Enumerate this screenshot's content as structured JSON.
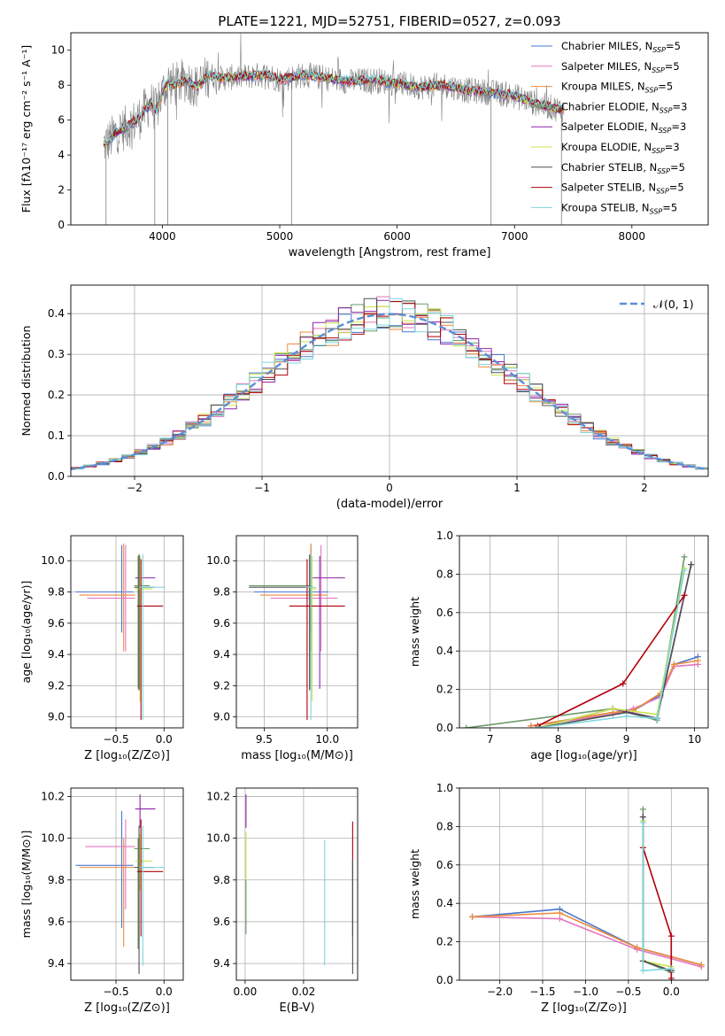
{
  "figure": {
    "title": "PLATE=1221, MJD=52751, FIBERID=0527, z=0.093"
  },
  "colors": {
    "Chabrier MILES": "#4878cf",
    "Salpeter MILES": "#e377c2",
    "Kroupa MILES": "#ee8b3a",
    "Chabrier ELODIE": "#6a9a6a",
    "Salpeter ELODIE": "#8e24aa",
    "Kroupa ELODIE": "#c8e64a",
    "Chabrier STELIB": "#505050",
    "Salpeter STELIB": "#b0000b",
    "Kroupa STELIB": "#7ed6dc",
    "normal": "#5a8fd8",
    "data": "#7f7f7f"
  },
  "chart_data": [
    {
      "id": "spectrum",
      "type": "line",
      "title": "PLATE=1221, MJD=52751, FIBERID=0527, z=0.093",
      "xlabel": "wavelength [Angstrom, rest frame]",
      "ylabel": "Flux [fλ10⁻¹⁷ erg cm⁻² s⁻¹ A⁻¹]",
      "xlim": [
        3220,
        8650
      ],
      "ylim": [
        0,
        11
      ],
      "xticks": [
        4000,
        5000,
        6000,
        7000,
        8000
      ],
      "yticks": [
        0,
        2,
        4,
        6,
        8,
        10
      ],
      "grid": false,
      "legend": "top-right",
      "legend_entries": [
        {
          "series": "Chabrier MILES",
          "text": "Chabrier MILES, N",
          "sub": "SSP",
          "tail": "=5"
        },
        {
          "series": "Salpeter MILES",
          "text": "Salpeter MILES, N",
          "sub": "SSP",
          "tail": "=5"
        },
        {
          "series": "Kroupa MILES",
          "text": "Kroupa MILES, N",
          "sub": "SSP",
          "tail": "=5"
        },
        {
          "series": "Chabrier ELODIE",
          "text": "Chabrier ELODIE, N",
          "sub": "SSP",
          "tail": "=3"
        },
        {
          "series": "Salpeter ELODIE",
          "text": "Salpeter ELODIE, N",
          "sub": "SSP",
          "tail": "=3"
        },
        {
          "series": "Kroupa ELODIE",
          "text": "Kroupa ELODIE, N",
          "sub": "SSP",
          "tail": "=3"
        },
        {
          "series": "Chabrier STELIB",
          "text": "Chabrier STELIB, N",
          "sub": "SSP",
          "tail": "=5"
        },
        {
          "series": "Salpeter STELIB",
          "text": "Salpeter STELIB, N",
          "sub": "SSP",
          "tail": "=5"
        },
        {
          "series": "Kroupa STELIB",
          "text": "Kroupa STELIB, N",
          "sub": "SSP",
          "tail": "=5"
        }
      ],
      "data_x": [
        3500,
        3560,
        3600,
        3700,
        3800,
        3900,
        3950,
        4000,
        4050,
        4100,
        4200,
        4300,
        4400,
        4500,
        4700,
        4900,
        5000,
        5200,
        5400,
        5600,
        5800,
        6000,
        6200,
        6400,
        6600,
        6800,
        7000,
        7200,
        7400
      ],
      "data_y": [
        4.6,
        4.9,
        5.3,
        5.6,
        6.1,
        7.0,
        6.5,
        7.6,
        8.2,
        8.0,
        8.3,
        7.9,
        8.6,
        8.4,
        8.5,
        8.6,
        8.3,
        8.6,
        8.4,
        8.2,
        8.3,
        8.1,
        7.9,
        8.0,
        7.7,
        7.6,
        7.4,
        6.9,
        6.6
      ],
      "deep_lines": [
        {
          "x": 3935,
          "to": 0
        },
        {
          "x": 4045,
          "to": 0
        },
        {
          "x": 5100,
          "to": 0
        },
        {
          "x": 6800,
          "to": 0
        },
        {
          "x": 7400,
          "to": 0
        },
        {
          "x": 3520,
          "to": 0
        }
      ]
    },
    {
      "id": "residuals",
      "type": "step",
      "xlabel": "(data-model)/error",
      "ylabel": "Normed distribution",
      "xlim": [
        -2.5,
        2.5
      ],
      "ylim": [
        0,
        0.47
      ],
      "xticks": [
        -2,
        -1,
        0,
        1,
        2
      ],
      "yticks": [
        0.0,
        0.1,
        0.2,
        0.3,
        0.4
      ],
      "grid": true,
      "legend": "top-right",
      "normal_label": "𝒩(0, 1)"
    },
    {
      "id": "age-vs-Z",
      "type": "errorbar",
      "xlabel": "Z [log₁₀(Z/Z⊙)]",
      "ylabel": "age  [log₁₀(age/yr)]",
      "xlim": [
        -0.97,
        0.2
      ],
      "ylim": [
        8.93,
        10.16
      ],
      "xticks": [
        -0.5,
        0.0
      ],
      "yticks": [
        9.0,
        9.2,
        9.4,
        9.6,
        9.8,
        10.0
      ],
      "grid": true,
      "points": [
        {
          "series": "Chabrier MILES",
          "x": -0.44,
          "y": 9.8,
          "xerr": [
            0.48,
            0.12
          ],
          "yerr": [
            0.26,
            0.3
          ]
        },
        {
          "series": "Salpeter MILES",
          "x": -0.4,
          "y": 9.76,
          "xerr": [
            0.4,
            0.1
          ],
          "yerr": [
            0.34,
            0.34
          ]
        },
        {
          "series": "Kroupa MILES",
          "x": -0.42,
          "y": 9.78,
          "xerr": [
            0.46,
            0.12
          ],
          "yerr": [
            0.36,
            0.33
          ]
        },
        {
          "series": "Chabrier ELODIE",
          "x": -0.27,
          "y": 9.84,
          "xerr": [
            0.04,
            0.12
          ],
          "yerr": [
            0.66,
            0.19
          ]
        },
        {
          "series": "Salpeter ELODIE",
          "x": -0.25,
          "y": 9.89,
          "xerr": [
            0.05,
            0.16
          ],
          "yerr": [
            0.71,
            0.14
          ]
        },
        {
          "series": "Kroupa ELODIE",
          "x": -0.25,
          "y": 9.82,
          "xerr": [
            0.05,
            0.13
          ],
          "yerr": [
            0.72,
            0.21
          ]
        },
        {
          "series": "Chabrier STELIB",
          "x": -0.26,
          "y": 9.83,
          "xerr": [
            0.05,
            0.16
          ],
          "yerr": [
            0.66,
            0.21
          ]
        },
        {
          "series": "Salpeter STELIB",
          "x": -0.24,
          "y": 9.71,
          "xerr": [
            0.04,
            0.23
          ],
          "yerr": [
            0.73,
            0.3
          ]
        },
        {
          "series": "Kroupa STELIB",
          "x": -0.22,
          "y": 9.83,
          "xerr": [
            0.04,
            0.23
          ],
          "yerr": [
            0.85,
            0.21
          ]
        }
      ]
    },
    {
      "id": "age-vs-mass",
      "type": "errorbar",
      "xlabel": "mass [log₁₀(M/M⊙)]",
      "ylabel": "",
      "xlim": [
        9.28,
        10.24
      ],
      "ylim": [
        8.93,
        10.16
      ],
      "xticks": [
        9.5,
        10.0
      ],
      "yticks": [
        9.0,
        9.2,
        9.4,
        9.6,
        9.8,
        10.0
      ],
      "grid": true,
      "points": [
        {
          "series": "Chabrier MILES",
          "x": 9.87,
          "y": 9.8,
          "xerr": [
            0.45,
            0.14
          ],
          "yerr": [
            0.26,
            0.3
          ]
        },
        {
          "series": "Salpeter MILES",
          "x": 9.95,
          "y": 9.76,
          "xerr": [
            0.4,
            0.13
          ],
          "yerr": [
            0.34,
            0.34
          ]
        },
        {
          "series": "Kroupa MILES",
          "x": 9.87,
          "y": 9.78,
          "xerr": [
            0.4,
            0.13
          ],
          "yerr": [
            0.36,
            0.33
          ]
        },
        {
          "series": "Chabrier ELODIE",
          "x": 9.86,
          "y": 9.84,
          "xerr": [
            0.48,
            0.02
          ],
          "yerr": [
            0.66,
            0.19
          ]
        },
        {
          "series": "Salpeter ELODIE",
          "x": 9.94,
          "y": 9.89,
          "xerr": [
            0.07,
            0.2
          ],
          "yerr": [
            0.71,
            0.14
          ]
        },
        {
          "series": "Kroupa ELODIE",
          "x": 9.88,
          "y": 9.82,
          "xerr": [
            0.04,
            0.04
          ],
          "yerr": [
            0.72,
            0.21
          ]
        },
        {
          "series": "Chabrier STELIB",
          "x": 9.86,
          "y": 9.83,
          "xerr": [
            0.48,
            0.02
          ],
          "yerr": [
            0.66,
            0.21
          ]
        },
        {
          "series": "Salpeter STELIB",
          "x": 9.84,
          "y": 9.71,
          "xerr": [
            0.14,
            0.3
          ],
          "yerr": [
            0.73,
            0.3
          ]
        },
        {
          "series": "Kroupa STELIB",
          "x": 9.87,
          "y": 9.83,
          "xerr": [
            0.04,
            0.04
          ],
          "yerr": [
            0.85,
            0.21
          ]
        }
      ]
    },
    {
      "id": "massweight-vs-age",
      "type": "line",
      "xlabel": "age  [log₁₀(age/yr)]",
      "ylabel": "mass weight",
      "xlim": [
        6.55,
        10.2
      ],
      "ylim": [
        0,
        1.0
      ],
      "xticks": [
        7,
        8,
        9,
        10
      ],
      "yticks": [
        0.0,
        0.2,
        0.4,
        0.6,
        0.8,
        1.0
      ],
      "grid": true,
      "series": [
        {
          "name": "Chabrier MILES",
          "x": [
            7.6,
            8.8,
            9.1,
            9.5,
            9.7,
            10.05
          ],
          "y": [
            0.01,
            0.08,
            0.09,
            0.17,
            0.33,
            0.37
          ]
        },
        {
          "name": "Salpeter MILES",
          "x": [
            7.6,
            8.8,
            9.1,
            9.5,
            9.7,
            10.05
          ],
          "y": [
            0.01,
            0.07,
            0.1,
            0.16,
            0.32,
            0.33
          ]
        },
        {
          "name": "Kroupa MILES",
          "x": [
            7.6,
            8.8,
            9.1,
            9.5,
            9.7,
            10.05
          ],
          "y": [
            0.01,
            0.08,
            0.09,
            0.18,
            0.33,
            0.35
          ]
        },
        {
          "name": "Chabrier ELODIE",
          "x": [
            6.65,
            8.8,
            9.45,
            9.85
          ],
          "y": [
            0.0,
            0.1,
            0.04,
            0.89
          ]
        },
        {
          "name": "Salpeter ELODIE",
          "x": [
            7.7,
            8.8,
            9.45,
            9.95
          ],
          "y": [
            0.0,
            0.1,
            0.05,
            0.85
          ]
        },
        {
          "name": "Kroupa ELODIE",
          "x": [
            7.7,
            8.8,
            9.45,
            9.85
          ],
          "y": [
            0.0,
            0.1,
            0.07,
            0.83
          ]
        },
        {
          "name": "Chabrier STELIB",
          "x": [
            7.7,
            9.0,
            9.45,
            9.95
          ],
          "y": [
            0.0,
            0.08,
            0.05,
            0.85
          ]
        },
        {
          "name": "Salpeter STELIB",
          "x": [
            7.7,
            8.95,
            9.85
          ],
          "y": [
            0.01,
            0.23,
            0.69
          ]
        },
        {
          "name": "Kroupa STELIB",
          "x": [
            7.7,
            9.0,
            9.45,
            9.85
          ],
          "y": [
            0.0,
            0.06,
            0.05,
            0.82
          ]
        }
      ]
    },
    {
      "id": "mass-vs-Z",
      "type": "errorbar",
      "xlabel": "Z [log₁₀(Z/Z⊙)]",
      "ylabel": "mass [log₁₀(M/M⊙)]",
      "xlim": [
        -0.97,
        0.2
      ],
      "ylim": [
        9.32,
        10.24
      ],
      "xticks": [
        -0.5,
        0.0
      ],
      "yticks": [
        9.4,
        9.6,
        9.8,
        10.0,
        10.2
      ],
      "grid": true,
      "points": [
        {
          "series": "Chabrier MILES",
          "x": -0.44,
          "y": 9.87,
          "xerr": [
            0.48,
            0.12
          ],
          "yerr": [
            0.3,
            0.26
          ]
        },
        {
          "series": "Salpeter MILES",
          "x": -0.4,
          "y": 9.96,
          "xerr": [
            0.42,
            0.1
          ],
          "yerr": [
            0.3,
            0.13
          ]
        },
        {
          "series": "Kroupa MILES",
          "x": -0.42,
          "y": 9.86,
          "xerr": [
            0.46,
            0.12
          ],
          "yerr": [
            0.38,
            0.14
          ]
        },
        {
          "series": "Chabrier ELODIE",
          "x": -0.27,
          "y": 9.95,
          "xerr": [
            0.04,
            0.12
          ],
          "yerr": [
            0.48,
            0.05
          ]
        },
        {
          "series": "Salpeter ELODIE",
          "x": -0.25,
          "y": 10.14,
          "xerr": [
            0.05,
            0.16
          ],
          "yerr": [
            0.09,
            0.07
          ]
        },
        {
          "series": "Kroupa ELODIE",
          "x": -0.25,
          "y": 9.89,
          "xerr": [
            0.05,
            0.13
          ],
          "yerr": [
            0.14,
            0.13
          ]
        },
        {
          "series": "Chabrier STELIB",
          "x": -0.26,
          "y": 9.86,
          "xerr": [
            0.05,
            0.16
          ],
          "yerr": [
            0.51,
            0.2
          ]
        },
        {
          "series": "Salpeter STELIB",
          "x": -0.24,
          "y": 9.84,
          "xerr": [
            0.04,
            0.23
          ],
          "yerr": [
            0.31,
            0.25
          ]
        },
        {
          "series": "Kroupa STELIB",
          "x": -0.22,
          "y": 9.86,
          "xerr": [
            0.04,
            0.23
          ],
          "yerr": [
            0.47,
            0.2
          ]
        }
      ]
    },
    {
      "id": "mass-vs-ebv",
      "type": "errorbar",
      "xlabel": "E(B-V)",
      "ylabel": "",
      "xlim": [
        -0.003,
        0.0385
      ],
      "ylim": [
        9.32,
        10.24
      ],
      "xticks": [
        0.0,
        0.02
      ],
      "yticks": [
        9.4,
        9.6,
        9.8,
        10.0,
        10.2
      ],
      "grid": true,
      "points": [
        {
          "series": "Salpeter ELODIE",
          "x": 0.0003,
          "y": 10.14,
          "xerr": [
            0,
            0
          ],
          "yerr": [
            0.09,
            0.07
          ]
        },
        {
          "series": "Kroupa ELODIE",
          "x": 0.0003,
          "y": 9.89,
          "xerr": [
            0,
            0
          ],
          "yerr": [
            0.3,
            0.14
          ]
        },
        {
          "series": "Chabrier ELODIE",
          "x": 0.0003,
          "y": 9.7,
          "xerr": [
            0,
            0
          ],
          "yerr": [
            0.16,
            0.1
          ]
        },
        {
          "series": "Kroupa STELIB",
          "x": 0.0272,
          "y": 9.69,
          "xerr": [
            0,
            0
          ],
          "yerr": [
            0.3,
            0.3
          ]
        },
        {
          "series": "Salpeter STELIB",
          "x": 0.0368,
          "y": 9.84,
          "xerr": [
            0,
            0
          ],
          "yerr": [
            0.31,
            0.24
          ]
        },
        {
          "series": "Chabrier STELIB",
          "x": 0.0368,
          "y": 9.7,
          "xerr": [
            0,
            0
          ],
          "yerr": [
            0.35,
            0.2
          ]
        }
      ]
    },
    {
      "id": "massweight-vs-Z",
      "type": "line",
      "xlabel": "Z [log₁₀(Z/Z⊙)]",
      "ylabel": "mass weight",
      "xlim": [
        -2.47,
        0.43
      ],
      "ylim": [
        0,
        1.0
      ],
      "xticks": [
        -2.0,
        -1.5,
        -1.0,
        -0.5,
        0.0
      ],
      "yticks": [
        0.0,
        0.2,
        0.4,
        0.6,
        0.8,
        1.0
      ],
      "grid": true,
      "series": [
        {
          "name": "Chabrier MILES",
          "x": [
            -2.32,
            -1.3,
            -0.4,
            0.35
          ],
          "y": [
            0.33,
            0.37,
            0.17,
            0.08
          ]
        },
        {
          "name": "Salpeter MILES",
          "x": [
            -2.32,
            -1.3,
            -0.4,
            0.35
          ],
          "y": [
            0.33,
            0.32,
            0.16,
            0.07
          ]
        },
        {
          "name": "Kroupa MILES",
          "x": [
            -2.32,
            -1.3,
            -0.4,
            0.35
          ],
          "y": [
            0.33,
            0.35,
            0.17,
            0.08
          ]
        },
        {
          "name": "Chabrier ELODIE",
          "x": [
            -0.33,
            -0.33,
            0.0
          ],
          "y": [
            0.89,
            0.1,
            0.04
          ]
        },
        {
          "name": "Salpeter ELODIE",
          "x": [
            -0.33,
            -0.33,
            0.0
          ],
          "y": [
            0.85,
            0.1,
            0.05
          ]
        },
        {
          "name": "Kroupa ELODIE",
          "x": [
            -0.33,
            -0.33,
            0.0
          ],
          "y": [
            0.83,
            0.1,
            0.07
          ]
        },
        {
          "name": "Chabrier STELIB",
          "x": [
            -0.33,
            -0.33,
            0.0,
            0.0
          ],
          "y": [
            0.85,
            0.1,
            0.05,
            0.0
          ]
        },
        {
          "name": "Salpeter STELIB",
          "x": [
            -0.33,
            0.0,
            0.0
          ],
          "y": [
            0.69,
            0.23,
            0.01
          ]
        },
        {
          "name": "Kroupa STELIB",
          "x": [
            -0.33,
            -0.33,
            0.0
          ],
          "y": [
            0.82,
            0.05,
            0.06
          ]
        }
      ]
    }
  ]
}
